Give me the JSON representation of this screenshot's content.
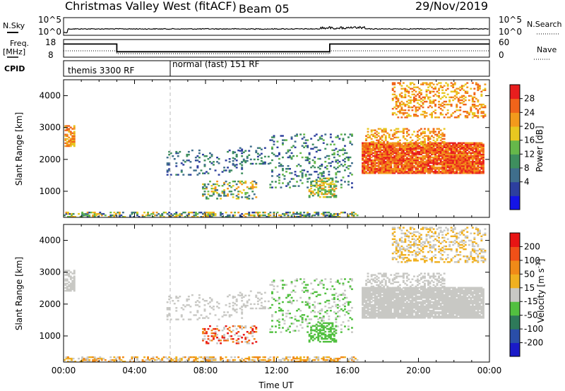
{
  "header": {
    "title": "Christmas Valley West (fitACF)",
    "beam": "Beam 05",
    "date": "29/Nov/2019"
  },
  "nsky": {
    "label": "N.Sky",
    "left_ticks": [
      "10^5",
      "10^0"
    ],
    "right_label": "N.Search",
    "right_ticks": [
      "10^5",
      "10^0"
    ]
  },
  "freq": {
    "label_line1": "Freq.",
    "label_line2": "[MHz]",
    "left_ticks": [
      "18",
      "8"
    ],
    "right_label": "Nave",
    "right_ticks": [
      "60",
      "0"
    ],
    "segments": [
      {
        "t0": 0.0,
        "t1": 3.0,
        "mhz": 16.2
      },
      {
        "t0": 3.0,
        "t1": 15.0,
        "mhz": 10.5
      },
      {
        "t0": 15.0,
        "t1": 24.0,
        "mhz": 16.2
      }
    ]
  },
  "cpid": {
    "label": "CPID",
    "modes": [
      {
        "t0": 0.0,
        "t1": 6.0,
        "text": "themis 3300 RF"
      },
      {
        "t0": 6.0,
        "t1": 24.0,
        "text": "normal (fast) 151 RF"
      }
    ]
  },
  "chart_data": [
    {
      "type": "heatmap",
      "panel": "power",
      "ylabel": "Slant Range [km]",
      "xlim": [
        0,
        24
      ],
      "ylim": [
        180,
        4500
      ],
      "yticks": [
        1000,
        2000,
        3000,
        4000
      ],
      "colorbar_label": "Power [dB]",
      "colorbar_ticks": [
        "28",
        "24",
        "20",
        "16",
        "12",
        "8",
        "4"
      ],
      "colors": [
        "#1414e6",
        "#2d3f9e",
        "#3f6e8c",
        "#3e8f5e",
        "#66b84a",
        "#e8c820",
        "#f39a1c",
        "#f0641a",
        "#e81e1e"
      ]
    },
    {
      "type": "heatmap",
      "panel": "velocity",
      "ylabel": "Slant Range [km]",
      "xlabel": "Time UT",
      "xlim": [
        0,
        24
      ],
      "ylim": [
        180,
        4500
      ],
      "yticks": [
        1000,
        2000,
        3000,
        4000
      ],
      "xticks": [
        "00:00",
        "04:00",
        "08:00",
        "12:00",
        "16:00",
        "20:00",
        "00:00"
      ],
      "colorbar_label": "Velocity [m s^-1]",
      "colorbar_ticks": [
        "200",
        "100",
        "50",
        "15",
        "-15",
        "-50",
        "-100",
        "-200"
      ],
      "colors": [
        "#1a1ac8",
        "#2a4ea8",
        "#2e7a5a",
        "#52c040",
        "#c8c8c4",
        "#f0b020",
        "#f08a18",
        "#f05018",
        "#e81414"
      ]
    }
  ],
  "regions": [
    {
      "t0": 0.05,
      "t1": 0.55,
      "r0": 2400,
      "r1": 3050,
      "d": 0.7,
      "p": [
        5,
        6,
        7
      ],
      "v": [
        4
      ]
    },
    {
      "t0": 5.8,
      "t1": 10.0,
      "r0": 1500,
      "r1": 2300,
      "d": 0.12,
      "p": [
        1,
        2,
        3
      ],
      "v": [
        4
      ]
    },
    {
      "t0": 7.8,
      "t1": 10.8,
      "r0": 750,
      "r1": 1300,
      "d": 0.32,
      "p": [
        2,
        3,
        4,
        5,
        6
      ],
      "v": [
        4,
        6,
        7,
        8
      ]
    },
    {
      "t0": 9.5,
      "t1": 11.5,
      "r0": 1800,
      "r1": 2400,
      "d": 0.2,
      "p": [
        1,
        2,
        3
      ],
      "v": [
        4
      ]
    },
    {
      "t0": 11.6,
      "t1": 16.2,
      "r0": 1100,
      "r1": 2800,
      "d": 0.16,
      "p": [
        1,
        2,
        3,
        4
      ],
      "v": [
        3,
        4
      ]
    },
    {
      "t0": 13.8,
      "t1": 15.3,
      "r0": 800,
      "r1": 1400,
      "d": 0.45,
      "p": [
        3,
        4,
        5,
        6
      ],
      "v": [
        3
      ]
    },
    {
      "t0": 16.8,
      "t1": 23.7,
      "r0": 1550,
      "r1": 2500,
      "d": 0.92,
      "p": [
        6,
        7,
        8
      ],
      "v": [
        4
      ]
    },
    {
      "t0": 17.0,
      "t1": 21.5,
      "r0": 2400,
      "r1": 2950,
      "d": 0.35,
      "p": [
        5,
        6,
        7
      ],
      "v": [
        4
      ]
    },
    {
      "t0": 18.5,
      "t1": 23.8,
      "r0": 3300,
      "r1": 4400,
      "d": 0.33,
      "p": [
        5,
        6,
        7
      ],
      "v": [
        4,
        5
      ]
    },
    {
      "t0": 0.0,
      "t1": 16.5,
      "r0": 180,
      "r1": 320,
      "d": 0.45,
      "p": [
        1,
        2,
        3,
        4,
        5,
        6
      ],
      "v": [
        4,
        5,
        6
      ]
    }
  ]
}
